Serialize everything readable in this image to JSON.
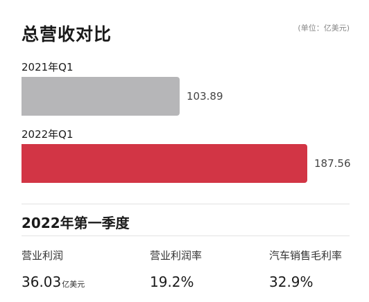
{
  "title": "总营收对比",
  "unit_note": "(单位：亿美元)",
  "chart_data": {
    "type": "bar",
    "orientation": "horizontal",
    "title": "总营收对比",
    "unit": "亿美元",
    "categories": [
      "2021年Q1",
      "2022年Q1"
    ],
    "values": [
      103.89,
      187.56
    ],
    "value_labels": [
      "103.89",
      "187.56"
    ],
    "colors": [
      "#b6b6b8",
      "#d23545"
    ],
    "xlim": [
      0,
      187.56
    ],
    "grid": false,
    "legend": "none"
  },
  "section": {
    "title": "2022年第一季度",
    "metrics": [
      {
        "label": "营业利润",
        "value": "36.03",
        "unit": "亿美元"
      },
      {
        "label": "营业利润率",
        "value": "19.2%",
        "unit": ""
      },
      {
        "label": "汽车销售毛利率",
        "value": "32.9%",
        "unit": ""
      }
    ]
  }
}
